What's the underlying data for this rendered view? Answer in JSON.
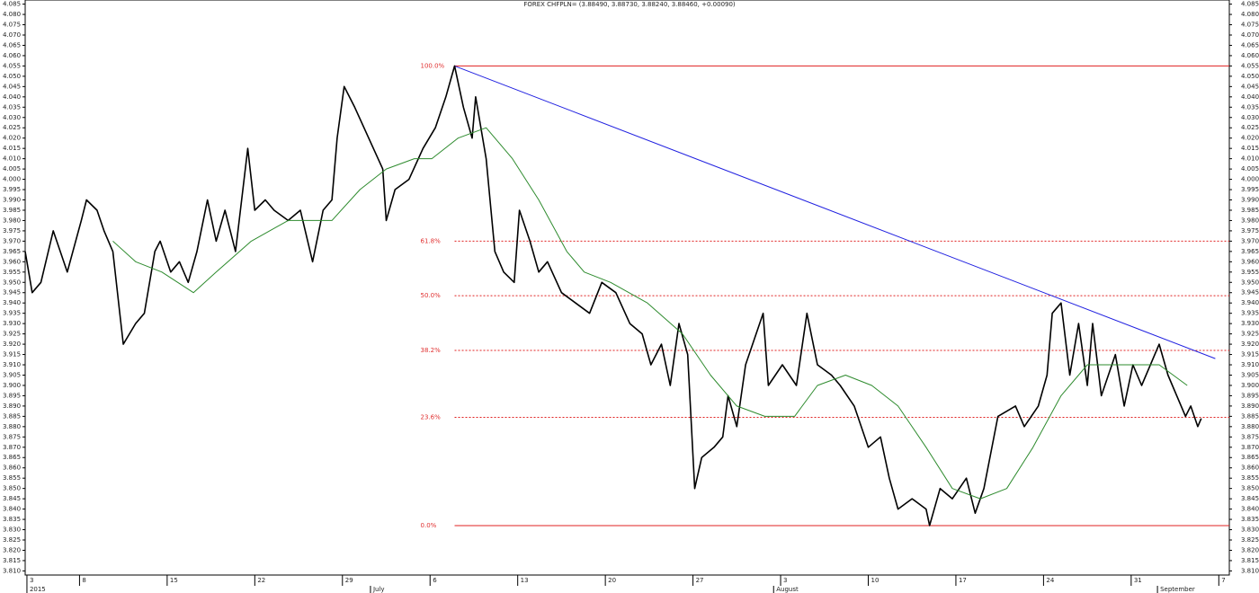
{
  "chart_data": {
    "type": "line",
    "title": "FOREX CHFPLN= (3.88490, 3.88730, 3.88240, 3.88460, +0.00090)",
    "xlim": [
      -0.1,
      68.6
    ],
    "ylim": [
      3.808,
      4.087
    ],
    "xticks": [
      {
        "value": 0,
        "label": "3"
      },
      {
        "value": 3,
        "label": "8"
      },
      {
        "value": 8,
        "label": "15"
      },
      {
        "value": 13,
        "label": "22"
      },
      {
        "value": 18,
        "label": "29"
      },
      {
        "value": 23,
        "label": "6"
      },
      {
        "value": 28,
        "label": "13"
      },
      {
        "value": 33,
        "label": "20"
      },
      {
        "value": 38,
        "label": "27"
      },
      {
        "value": 43,
        "label": "3"
      },
      {
        "value": 48,
        "label": "10"
      },
      {
        "value": 53,
        "label": "17"
      },
      {
        "value": 58,
        "label": "24"
      },
      {
        "value": 63,
        "label": "31"
      },
      {
        "value": 68,
        "label": "7"
      }
    ],
    "month_labels": [
      {
        "value": 0,
        "label": "2015"
      },
      {
        "value": 19.6,
        "label": "July"
      },
      {
        "value": 42.6,
        "label": "August"
      },
      {
        "value": 64.5,
        "label": "September"
      }
    ],
    "yticks": [
      {
        "value": 3.81,
        "label": "3.810"
      },
      {
        "value": 3.815,
        "label": "3.815"
      },
      {
        "value": 3.82,
        "label": "3.820"
      },
      {
        "value": 3.825,
        "label": "3.825"
      },
      {
        "value": 3.83,
        "label": "3.830"
      },
      {
        "value": 3.835,
        "label": "3.835"
      },
      {
        "value": 3.84,
        "label": "3.840"
      },
      {
        "value": 3.845,
        "label": "3.845"
      },
      {
        "value": 3.85,
        "label": "3.850"
      },
      {
        "value": 3.855,
        "label": "3.855"
      },
      {
        "value": 3.86,
        "label": "3.860"
      },
      {
        "value": 3.865,
        "label": "3.865"
      },
      {
        "value": 3.87,
        "label": "3.870"
      },
      {
        "value": 3.875,
        "label": "3.875"
      },
      {
        "value": 3.88,
        "label": "3.880"
      },
      {
        "value": 3.885,
        "label": "3.885"
      },
      {
        "value": 3.89,
        "label": "3.890"
      },
      {
        "value": 3.895,
        "label": "3.895"
      },
      {
        "value": 3.9,
        "label": "3.900"
      },
      {
        "value": 3.905,
        "label": "3.905"
      },
      {
        "value": 3.91,
        "label": "3.910"
      },
      {
        "value": 3.915,
        "label": "3.915"
      },
      {
        "value": 3.92,
        "label": "3.920"
      },
      {
        "value": 3.925,
        "label": "3.925"
      },
      {
        "value": 3.93,
        "label": "3.930"
      },
      {
        "value": 3.935,
        "label": "3.935"
      },
      {
        "value": 3.94,
        "label": "3.940"
      },
      {
        "value": 3.945,
        "label": "3.945"
      },
      {
        "value": 3.95,
        "label": "3.950"
      },
      {
        "value": 3.955,
        "label": "3.955"
      },
      {
        "value": 3.96,
        "label": "3.960"
      },
      {
        "value": 3.965,
        "label": "3.965"
      },
      {
        "value": 3.97,
        "label": "3.970"
      },
      {
        "value": 3.975,
        "label": "3.975"
      },
      {
        "value": 3.98,
        "label": "3.980"
      },
      {
        "value": 3.985,
        "label": "3.985"
      },
      {
        "value": 3.99,
        "label": "3.990"
      },
      {
        "value": 3.995,
        "label": "3.995"
      },
      {
        "value": 4,
        "label": "4.000"
      },
      {
        "value": 4.005,
        "label": "4.005"
      },
      {
        "value": 4.01,
        "label": "4.010"
      },
      {
        "value": 4.015,
        "label": "4.015"
      },
      {
        "value": 4.02,
        "label": "4.020"
      },
      {
        "value": 4.025,
        "label": "4.025"
      },
      {
        "value": 4.03,
        "label": "4.030"
      },
      {
        "value": 4.035,
        "label": "4.035"
      },
      {
        "value": 4.04,
        "label": "4.040"
      },
      {
        "value": 4.045,
        "label": "4.045"
      },
      {
        "value": 4.05,
        "label": "4.050"
      },
      {
        "value": 4.055,
        "label": "4.055"
      },
      {
        "value": 4.06,
        "label": "4.060"
      },
      {
        "value": 4.065,
        "label": "4.065"
      },
      {
        "value": 4.07,
        "label": "4.070"
      },
      {
        "value": 4.075,
        "label": "4.075"
      },
      {
        "value": 4.08,
        "label": "4.080"
      },
      {
        "value": 4.085,
        "label": "4.085"
      }
    ],
    "series": [
      {
        "color": "#000000",
        "x": [
          -0.1,
          0.3,
          0.8,
          1.5,
          2.3,
          3.1,
          3.4,
          4.0,
          4.4,
          4.9,
          5.3,
          5.5,
          6.2,
          6.7,
          7.3,
          7.6,
          8.2,
          8.7,
          9.2,
          9.7,
          10.3,
          10.8,
          11.3,
          11.9,
          12.6,
          13.0,
          13.6,
          14.1,
          14.9,
          15.6,
          16.3,
          16.9,
          17.4,
          17.7,
          18.1,
          18.7,
          19.5,
          20.3,
          20.5,
          21.0,
          21.8,
          22.6,
          23.3,
          23.9,
          24.4,
          24.9,
          25.4,
          25.6,
          26.2,
          26.7,
          27.2,
          27.8,
          28.1,
          28.7,
          29.2,
          29.7,
          30.5,
          31.3,
          32.1,
          32.8,
          33.6,
          34.4,
          35.1,
          35.6,
          36.2,
          36.7,
          37.2,
          37.7,
          38.1,
          38.5,
          39.2,
          39.7,
          40.0,
          40.5,
          41.0,
          42.0,
          42.3,
          43.1,
          43.9,
          44.5,
          45.1,
          45.9,
          46.4,
          47.2,
          48.0,
          48.7,
          49.2,
          49.7,
          50.5,
          51.3,
          51.5,
          52.1,
          52.8,
          53.6,
          54.1,
          54.6,
          55.4,
          56.4,
          56.9,
          57.7,
          58.2,
          58.5,
          59.0,
          59.5,
          60.0,
          60.5,
          60.8,
          61.3,
          62.1,
          62.6,
          63.1,
          63.6,
          64.6,
          65.1,
          66.1,
          66.4,
          66.8,
          67.0
        ],
        "values": [
          3.965,
          3.945,
          3.95,
          3.975,
          3.955,
          3.98,
          3.99,
          3.985,
          3.975,
          3.965,
          3.935,
          3.92,
          3.93,
          3.935,
          3.965,
          3.97,
          3.955,
          3.96,
          3.95,
          3.965,
          3.99,
          3.97,
          3.985,
          3.965,
          4.015,
          3.985,
          3.99,
          3.985,
          3.98,
          3.985,
          3.96,
          3.985,
          3.99,
          4.02,
          4.045,
          4.035,
          4.02,
          4.005,
          3.98,
          3.995,
          4.0,
          4.015,
          4.025,
          4.04,
          4.055,
          4.035,
          4.02,
          4.04,
          4.01,
          3.965,
          3.955,
          3.95,
          3.985,
          3.97,
          3.955,
          3.96,
          3.945,
          3.94,
          3.935,
          3.95,
          3.945,
          3.93,
          3.925,
          3.91,
          3.92,
          3.9,
          3.93,
          3.915,
          3.85,
          3.865,
          3.87,
          3.875,
          3.895,
          3.88,
          3.91,
          3.935,
          3.9,
          3.91,
          3.9,
          3.935,
          3.91,
          3.905,
          3.9,
          3.89,
          3.87,
          3.875,
          3.855,
          3.84,
          3.845,
          3.84,
          3.832,
          3.85,
          3.845,
          3.855,
          3.838,
          3.85,
          3.885,
          3.89,
          3.88,
          3.89,
          3.905,
          3.935,
          3.94,
          3.905,
          3.93,
          3.9,
          3.93,
          3.895,
          3.915,
          3.89,
          3.91,
          3.9,
          3.92,
          3.905,
          3.885,
          3.89,
          3.88,
          3.884
        ]
      },
      {
        "color": "#2e8b2e",
        "x": [
          4.9,
          6.2,
          7.7,
          9.5,
          10.8,
          12.8,
          14.9,
          17.4,
          19.0,
          20.5,
          22.1,
          23.1,
          24.6,
          26.2,
          27.7,
          29.2,
          30.8,
          31.8,
          33.3,
          35.4,
          37.4,
          39.0,
          40.5,
          42.1,
          43.8,
          45.1,
          46.7,
          48.2,
          49.7,
          51.3,
          52.8,
          54.4,
          55.9,
          57.4,
          59.0,
          60.5,
          63.1,
          64.6,
          66.2
        ],
        "values": [
          3.97,
          3.96,
          3.955,
          3.945,
          3.955,
          3.97,
          3.98,
          3.98,
          3.995,
          4.005,
          4.01,
          4.01,
          4.02,
          4.025,
          4.01,
          3.99,
          3.965,
          3.955,
          3.95,
          3.94,
          3.925,
          3.905,
          3.89,
          3.885,
          3.885,
          3.9,
          3.905,
          3.9,
          3.89,
          3.87,
          3.85,
          3.845,
          3.85,
          3.87,
          3.895,
          3.91,
          3.91,
          3.91,
          3.9
        ]
      }
    ],
    "fib_levels": [
      {
        "value": 4.055,
        "label": "100.0%",
        "style": "solid"
      },
      {
        "value": 3.97,
        "label": "61.8%",
        "style": "dashed"
      },
      {
        "value": 3.9435,
        "label": "50.0%",
        "style": "dashed"
      },
      {
        "value": 3.917,
        "label": "38.2%",
        "style": "dashed"
      },
      {
        "value": 3.8845,
        "label": "23.6%",
        "style": "dashed"
      },
      {
        "value": 3.832,
        "label": "0.0%",
        "style": "solid"
      }
    ],
    "fib_color": "#e02020",
    "trendline": {
      "color": "#2020e0",
      "x": [
        24.4,
        67.8
      ],
      "values": [
        4.055,
        3.913
      ]
    }
  }
}
